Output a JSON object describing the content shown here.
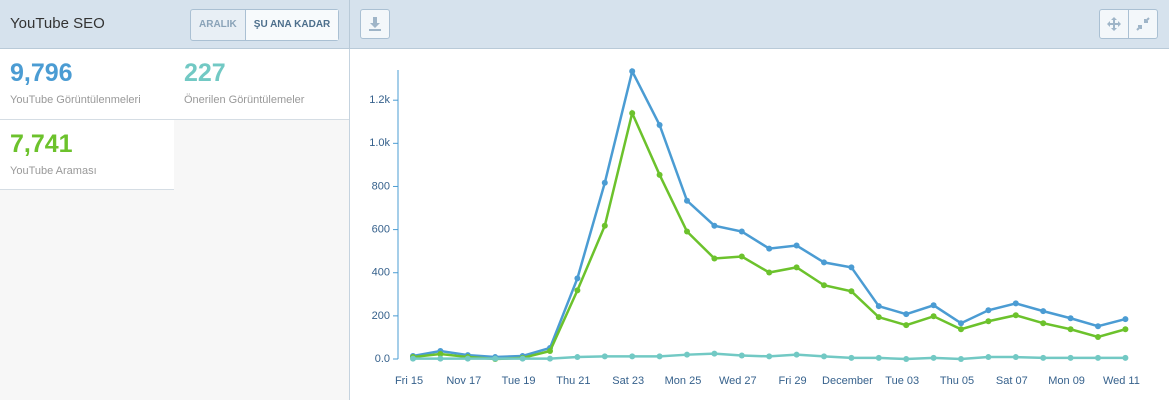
{
  "header": {
    "title": "YouTube SEO",
    "buttons": [
      "ARALIK",
      "ŞU ANA KADAR"
    ]
  },
  "stats": [
    {
      "value": "9,796",
      "label": "YouTube Görüntülenmeleri",
      "color": "#4b9cd3"
    },
    {
      "value": "227",
      "label": "Önerilen Görüntülemeler",
      "color": "#72c9c4"
    },
    {
      "value": "7,741",
      "label": "YouTube Araması",
      "color": "#6cc22c"
    }
  ],
  "chart_data": {
    "type": "line",
    "categories": [
      "Fri 15",
      null,
      "Nov 17",
      null,
      "Tue 19",
      null,
      "Thu 21",
      null,
      "Sat 23",
      null,
      "Mon 25",
      null,
      "Wed 27",
      null,
      "Fri 29",
      null,
      "December",
      null,
      "Tue 03",
      null,
      "Thu 05",
      null,
      "Sat 07",
      null,
      "Mon 09",
      null,
      "Wed 11"
    ],
    "series": [
      {
        "color": "#4b9cd3",
        "values": [
          14,
          37,
          18,
          9,
          14,
          51,
          374,
          817,
          1334,
          1085,
          734,
          618,
          591,
          512,
          526,
          448,
          425,
          245,
          208,
          249,
          166,
          226,
          258,
          222,
          189,
          152,
          185
        ]
      },
      {
        "color": "#6cc22c",
        "values": [
          9,
          23,
          9,
          0,
          5,
          37,
          318,
          618,
          1140,
          854,
          591,
          466,
          475,
          401,
          425,
          342,
          314,
          194,
          157,
          198,
          138,
          175,
          203,
          166,
          138,
          102,
          138
        ]
      },
      {
        "color": "#72c9c4",
        "values": [
          2,
          2,
          2,
          2,
          2,
          2,
          9,
          12,
          12,
          12,
          20,
          25,
          16,
          12,
          20,
          12,
          5,
          5,
          0,
          5,
          0,
          9,
          9,
          5,
          5,
          5,
          5
        ]
      }
    ],
    "ylim": [
      0,
      1340
    ],
    "yticks": [
      {
        "value": 0,
        "label": "0.0"
      },
      200,
      400,
      600,
      800,
      {
        "value": 1000,
        "label": "1.0k"
      },
      {
        "value": 1200,
        "label": "1.2k"
      }
    ]
  }
}
